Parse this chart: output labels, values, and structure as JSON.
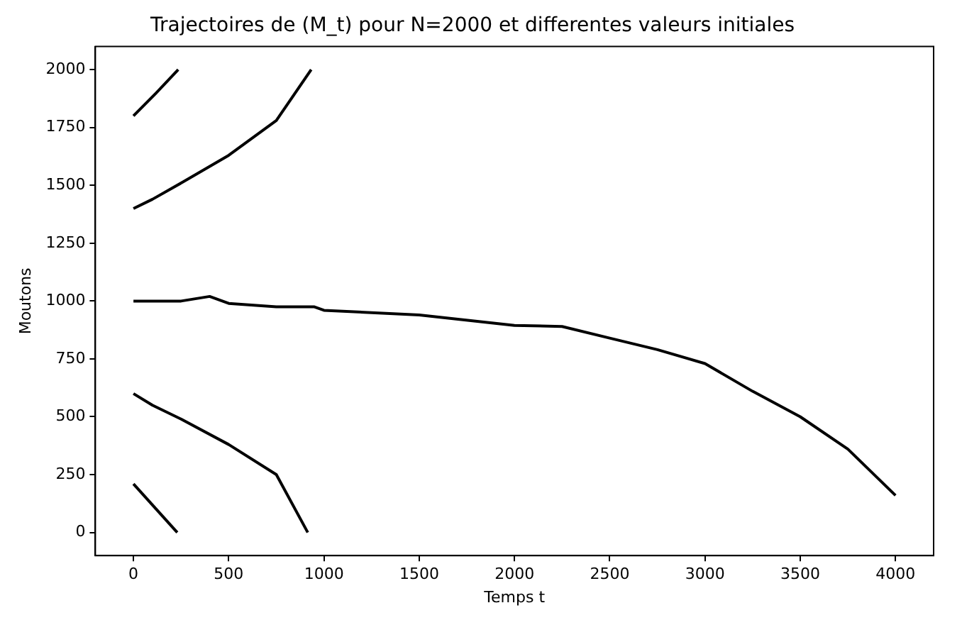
{
  "chart_data": {
    "type": "line",
    "title": "Trajectoires de (M_t) pour N=2000 et differentes valeurs initiales",
    "xlabel": "Temps t",
    "ylabel": "Moutons",
    "xlim": [
      -200,
      4200
    ],
    "xticks": [
      0,
      500,
      1000,
      1500,
      2000,
      2500,
      3000,
      3500,
      4000
    ],
    "ylim": [
      -100,
      2100
    ],
    "yticks": [
      0,
      250,
      500,
      750,
      1000,
      1250,
      1500,
      1750,
      2000
    ],
    "grid": false,
    "legend": false,
    "marker": "none",
    "line_style": "solid",
    "series": [
      {
        "color": "#000000",
        "x": [
          0,
          120,
          235
        ],
        "values": [
          1800,
          1900,
          2000
        ]
      },
      {
        "color": "#000000",
        "x": [
          0,
          100,
          250,
          500,
          750,
          933
        ],
        "values": [
          1400,
          1440,
          1510,
          1630,
          1780,
          2000
        ]
      },
      {
        "color": "#000000",
        "x": [
          0,
          250,
          400,
          500,
          750,
          950,
          1000,
          1500,
          2000,
          2250,
          2500,
          2750,
          3000,
          3250,
          3500,
          3750,
          4000
        ],
        "values": [
          1000,
          1000,
          1020,
          990,
          975,
          975,
          960,
          940,
          895,
          890,
          840,
          790,
          730,
          610,
          500,
          360,
          160
        ]
      },
      {
        "color": "#000000",
        "x": [
          0,
          100,
          250,
          500,
          750,
          915
        ],
        "values": [
          600,
          550,
          490,
          380,
          250,
          0
        ]
      },
      {
        "color": "#000000",
        "x": [
          0,
          230
        ],
        "values": [
          210,
          0
        ]
      }
    ]
  }
}
